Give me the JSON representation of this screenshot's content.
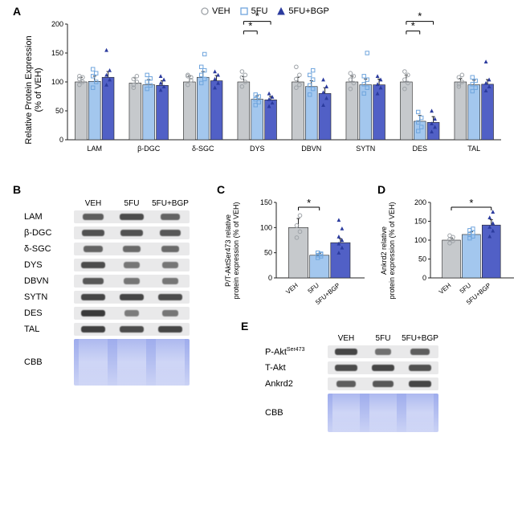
{
  "panels": {
    "A": "A",
    "B": "B",
    "C": "C",
    "D": "D",
    "E": "E"
  },
  "groups": {
    "VEH": {
      "label": "VEH",
      "bar_color": "#c6c9cc",
      "marker": "circle",
      "marker_color": "#9ea3a8"
    },
    "5FU": {
      "label": "5FU",
      "bar_color": "#a3c7ee",
      "marker": "square",
      "marker_color": "#6fa5dd"
    },
    "5FU+BGP": {
      "label": "5FU+BGP",
      "bar_color": "#5160c6",
      "marker": "triangle",
      "marker_color": "#2b3b9e"
    }
  },
  "panelA": {
    "type": "bar",
    "y_title": "Relative Protein Expression\n(% of VEH)",
    "title_fontsize": 11,
    "label_fontsize": 10,
    "ylim": [
      0,
      200
    ],
    "ytick_step": 50,
    "categories": [
      "LAM",
      "β-DGC",
      "δ-SGC",
      "DYS",
      "DBVN",
      "SYTN",
      "DES",
      "TAL"
    ],
    "series": {
      "VEH": {
        "means": [
          100,
          98,
          100,
          100,
          100,
          100,
          100,
          100
        ],
        "sem": [
          8,
          9,
          10,
          9,
          8,
          10,
          12,
          6
        ],
        "pts": [
          [
            95,
            100,
            105,
            108,
            110
          ],
          [
            90,
            100,
            105,
            110,
            95
          ],
          [
            95,
            103,
            110,
            108,
            112
          ],
          [
            92,
            100,
            108,
            112,
            118
          ],
          [
            90,
            95,
            105,
            112,
            126
          ],
          [
            88,
            98,
            104,
            110,
            115
          ],
          [
            88,
            98,
            104,
            112,
            118
          ],
          [
            92,
            100,
            108,
            112,
            96
          ]
        ]
      },
      "5FU": {
        "means": [
          101,
          95,
          108,
          70,
          92,
          95,
          32,
          95
        ],
        "sem": [
          9,
          9,
          10,
          6,
          10,
          10,
          10,
          8
        ],
        "pts": [
          [
            90,
            100,
            110,
            115,
            122
          ],
          [
            88,
            94,
            100,
            106,
            112
          ],
          [
            98,
            105,
            112,
            120,
            126,
            148
          ],
          [
            60,
            65,
            70,
            75,
            78
          ],
          [
            78,
            88,
            94,
            104,
            112,
            120
          ],
          [
            80,
            90,
            96,
            104,
            110,
            150
          ],
          [
            15,
            22,
            30,
            38,
            48
          ],
          [
            84,
            90,
            96,
            102,
            108
          ]
        ]
      },
      "5FU+BGP": {
        "means": [
          108,
          94,
          102,
          69,
          80,
          95,
          30,
          96
        ],
        "sem": [
          10,
          8,
          9,
          6,
          10,
          10,
          10,
          8
        ],
        "pts": [
          [
            95,
            104,
            112,
            120,
            155
          ],
          [
            86,
            92,
            98,
            104,
            110
          ],
          [
            90,
            98,
            105,
            112,
            118
          ],
          [
            58,
            64,
            70,
            74,
            80
          ],
          [
            60,
            72,
            82,
            92,
            104
          ],
          [
            80,
            90,
            96,
            104,
            110
          ],
          [
            14,
            22,
            28,
            36,
            50
          ],
          [
            85,
            92,
            98,
            104,
            135
          ]
        ]
      }
    },
    "significance": [
      {
        "cat": "DYS",
        "pairs": [
          [
            "VEH",
            "5FU"
          ],
          [
            "VEH",
            "5FU+BGP"
          ]
        ]
      },
      {
        "cat": "DES",
        "pairs": [
          [
            "VEH",
            "5FU"
          ],
          [
            "VEH",
            "5FU+BGP"
          ]
        ]
      }
    ],
    "bar_width": 0.25,
    "axis_color": "#222",
    "grid": false,
    "background_color": "#ffffff"
  },
  "panelB": {
    "type": "blot",
    "lanes": [
      "VEH",
      "5FU",
      "5FU+BGP"
    ],
    "lane_width": 48,
    "rows": [
      "LAM",
      "β-DGC",
      "δ-SGC",
      "DYS",
      "DBVN",
      "SYTN",
      "DES",
      "TAL",
      "CBB"
    ],
    "intensities": {
      "LAM": [
        0.55,
        0.7,
        0.5
      ],
      "β-DGC": [
        0.65,
        0.65,
        0.6
      ],
      "δ-SGC": [
        0.5,
        0.45,
        0.45
      ],
      "DYS": [
        0.7,
        0.35,
        0.35
      ],
      "DBVN": [
        0.6,
        0.35,
        0.35
      ],
      "SYTN": [
        0.75,
        0.75,
        0.7
      ],
      "DES": [
        0.85,
        0.3,
        0.35
      ],
      "TAL": [
        0.8,
        0.7,
        0.75
      ]
    },
    "band_height": 16,
    "cbb_height": 58,
    "cbb_color": "#7b8ee6",
    "bg_color": "#e9e9ea"
  },
  "panelC": {
    "type": "bar",
    "y_title": "P/T-AktSer473 relative\nprotein expression (% of VEH)",
    "ylim": [
      0,
      150
    ],
    "ytick_step": 50,
    "means": {
      "VEH": 100,
      "5FU": 45,
      "5FU+BGP": 70
    },
    "sem": {
      "VEH": 18,
      "5FU": 4,
      "5FU+BGP": 8
    },
    "pts": {
      "VEH": [
        80,
        92,
        104,
        124
      ],
      "5FU": [
        40,
        43,
        45,
        47,
        50,
        48
      ],
      "5FU+BGP": [
        50,
        60,
        68,
        75,
        82,
        98,
        115
      ]
    },
    "sig": [
      [
        "VEH",
        "5FU"
      ]
    ]
  },
  "panelD": {
    "type": "bar",
    "y_title": "Ankrd2 relative\nprotein expression (% of VEH)",
    "ylim": [
      0,
      200
    ],
    "ytick_step": 50,
    "means": {
      "VEH": 100,
      "5FU": 115,
      "5FU+BGP": 140
    },
    "sem": {
      "VEH": 6,
      "5FU": 7,
      "5FU+BGP": 14
    },
    "pts": {
      "VEH": [
        92,
        98,
        102,
        108,
        112
      ],
      "5FU": [
        105,
        110,
        115,
        120,
        126,
        130
      ],
      "5FU+BGP": [
        110,
        125,
        135,
        145,
        160,
        175
      ]
    },
    "sig": [
      [
        "VEH",
        "5FU+BGP"
      ]
    ]
  },
  "panelE": {
    "type": "blot",
    "lanes": [
      "VEH",
      "5FU",
      "5FU+BGP"
    ],
    "lane_width": 46,
    "rows": [
      "P-AktSer473",
      "T-Akt",
      "Ankrd2",
      "CBB"
    ],
    "intensities": {
      "P-AktSer473": [
        0.75,
        0.4,
        0.55
      ],
      "T-Akt": [
        0.7,
        0.75,
        0.65
      ],
      "Ankrd2": [
        0.55,
        0.6,
        0.75
      ]
    },
    "band_height": 16,
    "cbb_height": 48,
    "cbb_color": "#7b8ee6",
    "bg_color": "#e9e9ea"
  }
}
